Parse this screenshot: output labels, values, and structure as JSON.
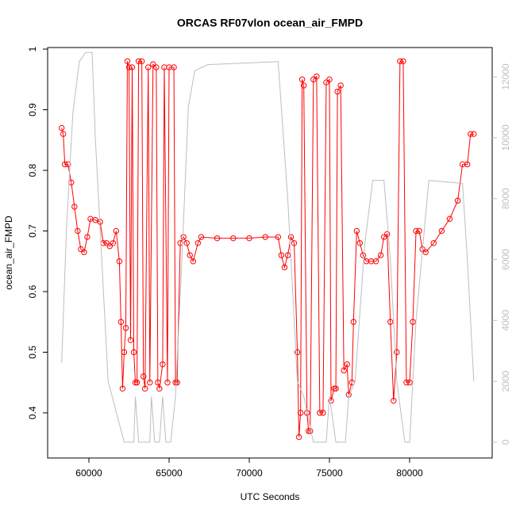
{
  "chart_data": {
    "type": "scatter",
    "title": "ORCAS RF07vlon ocean_air_FMPD",
    "xlabel": "UTC Seconds",
    "ylabel": "ocean_air_FMPD",
    "xlim": [
      57426,
      85149
    ],
    "ylim": [
      0.3255,
      1.0026
    ],
    "y2lim": [
      -521,
      12963
    ],
    "xticks": [
      60000,
      65000,
      70000,
      75000,
      80000
    ],
    "yticks": [
      0.4,
      0.5,
      0.6,
      0.7,
      0.8,
      0.9,
      1.0
    ],
    "y2ticks": [
      0,
      2000,
      4000,
      6000,
      8000,
      10000,
      12000
    ],
    "series": [
      {
        "color": "#ff0000",
        "marker": "circle",
        "x": [
          58300,
          58400,
          58500,
          58700,
          58900,
          59100,
          59300,
          59500,
          59700,
          59900,
          60100,
          60400,
          60700,
          60900,
          61100,
          61300,
          61500,
          61700,
          61900,
          62000,
          62100,
          62200,
          62300,
          62400,
          62500,
          62600,
          62700,
          62800,
          62900,
          63000,
          63100,
          63300,
          63400,
          63500,
          63700,
          63800,
          64000,
          64200,
          64300,
          64400,
          64600,
          64700,
          64900,
          65000,
          65300,
          65400,
          65500,
          65700,
          65900,
          66100,
          66300,
          66500,
          66800,
          67000,
          68000,
          69000,
          70000,
          71000,
          71800,
          72000,
          72200,
          72400,
          72600,
          72800,
          73000,
          73100,
          73200,
          73300,
          73400,
          73600,
          73700,
          73800,
          74000,
          74200,
          74400,
          74600,
          74800,
          75000,
          75100,
          75300,
          75400,
          75500,
          75700,
          75900,
          76100,
          76200,
          76400,
          76500,
          76700,
          76900,
          77100,
          77300,
          77600,
          77900,
          78200,
          78400,
          78600,
          78800,
          79000,
          79200,
          79400,
          79600,
          79800,
          80000,
          80200,
          80400,
          80600,
          80800,
          81000,
          81500,
          82000,
          82500,
          83000,
          83300,
          83600,
          83800,
          84000
        ],
        "values": [
          0.87,
          0.86,
          0.81,
          0.81,
          0.78,
          0.74,
          0.7,
          0.67,
          0.665,
          0.69,
          0.72,
          0.718,
          0.715,
          0.68,
          0.68,
          0.675,
          0.68,
          0.7,
          0.65,
          0.55,
          0.44,
          0.5,
          0.54,
          0.98,
          0.97,
          0.52,
          0.97,
          0.5,
          0.45,
          0.45,
          0.98,
          0.98,
          0.46,
          0.44,
          0.97,
          0.45,
          0.975,
          0.97,
          0.45,
          0.44,
          0.48,
          0.97,
          0.45,
          0.97,
          0.97,
          0.45,
          0.45,
          0.68,
          0.69,
          0.68,
          0.66,
          0.65,
          0.68,
          0.69,
          0.688,
          0.688,
          0.688,
          0.69,
          0.69,
          0.66,
          0.64,
          0.66,
          0.69,
          0.68,
          0.5,
          0.36,
          0.4,
          0.95,
          0.94,
          0.4,
          0.37,
          0.37,
          0.95,
          0.955,
          0.4,
          0.4,
          0.945,
          0.95,
          0.42,
          0.44,
          0.44,
          0.93,
          0.94,
          0.47,
          0.48,
          0.43,
          0.45,
          0.55,
          0.7,
          0.68,
          0.66,
          0.65,
          0.65,
          0.65,
          0.66,
          0.69,
          0.695,
          0.55,
          0.42,
          0.5,
          0.98,
          0.98,
          0.45,
          0.45,
          0.55,
          0.7,
          0.7,
          0.67,
          0.665,
          0.68,
          0.7,
          0.72,
          0.75,
          0.81,
          0.81,
          0.86,
          0.86
        ]
      },
      {
        "color": "#bebebe",
        "axis": "y2",
        "x": [
          58300,
          58600,
          59000,
          59400,
          59800,
          60200,
          60400,
          60800,
          61200,
          62200,
          62800,
          62900,
          63100,
          63800,
          63900,
          64100,
          64400,
          64600,
          64800,
          65100,
          65400,
          65800,
          66200,
          66600,
          67400,
          71800,
          72400,
          73000,
          73400,
          74000,
          74800,
          75000,
          75400,
          76000,
          76200,
          76600,
          77200,
          77700,
          78400,
          78800,
          79200,
          79700,
          80000,
          80400,
          81200,
          83300,
          83600,
          84000
        ],
        "values": [
          2600,
          7000,
          10800,
          12500,
          12800,
          12800,
          10000,
          6000,
          2000,
          0,
          0,
          1500,
          0,
          0,
          1500,
          0,
          0,
          1500,
          0,
          0,
          1500,
          6000,
          11000,
          12200,
          12400,
          12500,
          8000,
          2000,
          1500,
          0,
          0,
          1500,
          0,
          0,
          1500,
          2000,
          6500,
          8600,
          8600,
          6000,
          2000,
          0,
          0,
          4000,
          8600,
          8500,
          6000,
          2000
        ]
      }
    ]
  }
}
